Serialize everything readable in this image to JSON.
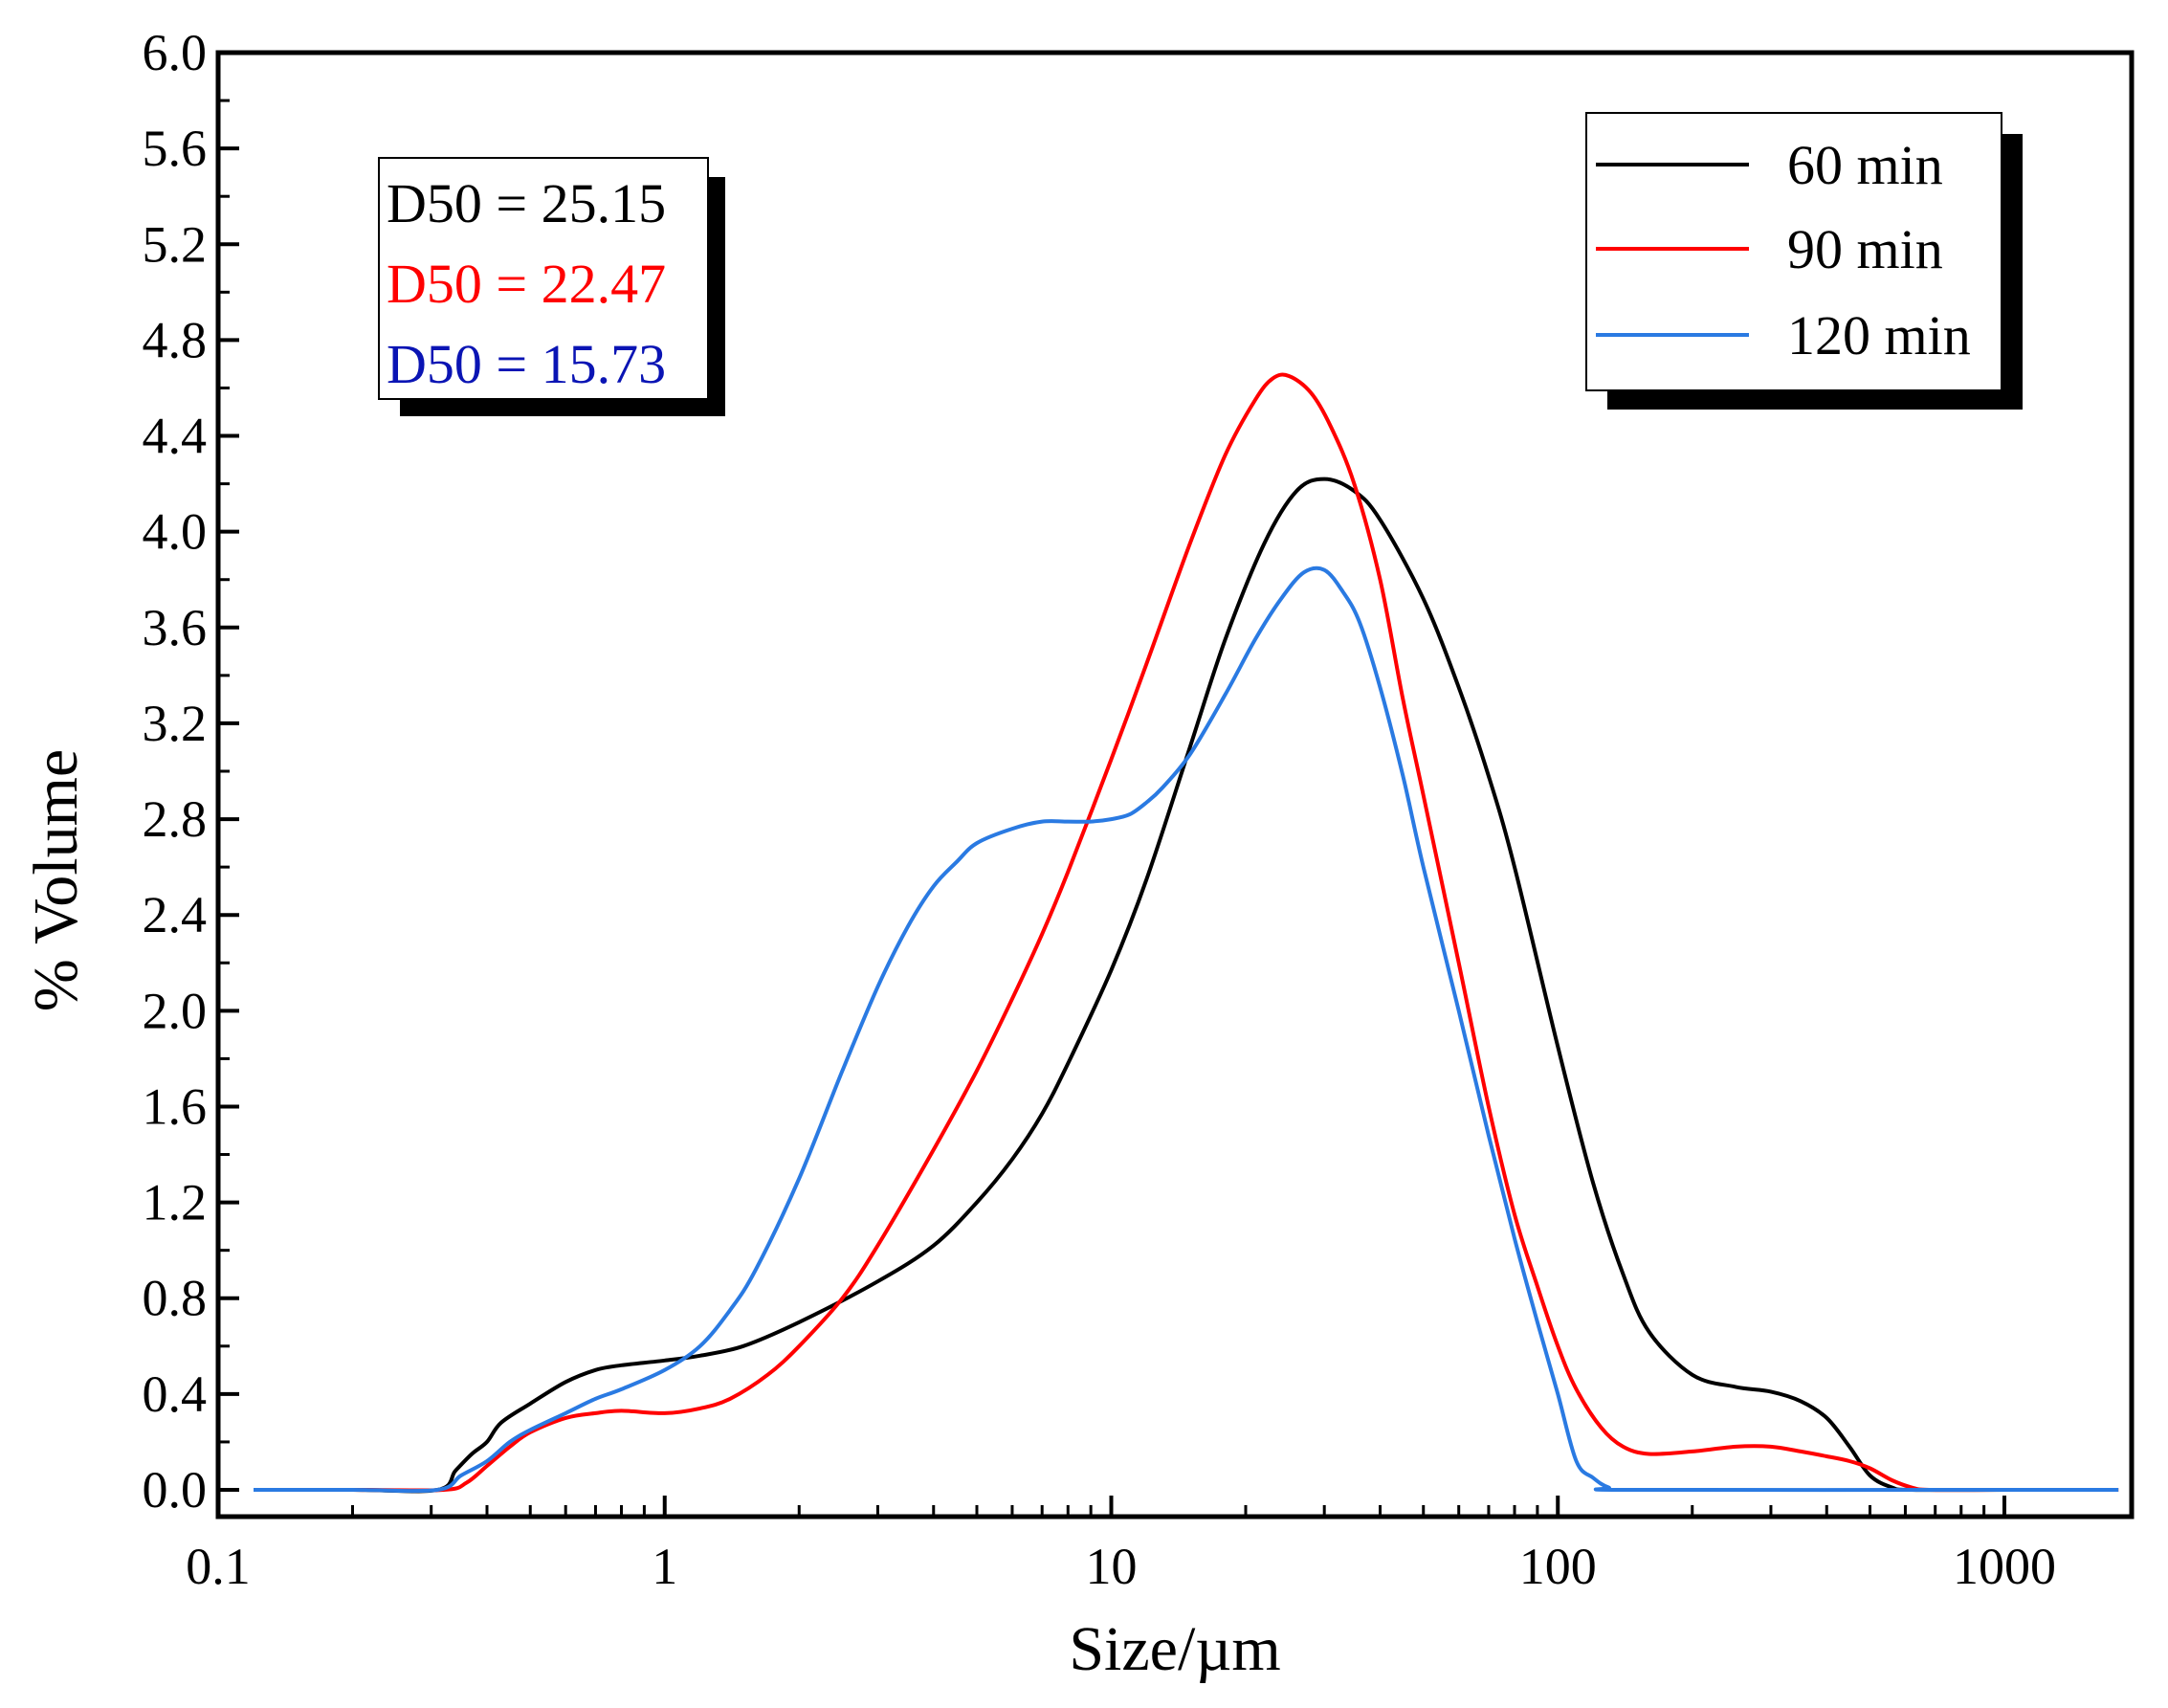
{
  "chart_data": {
    "type": "line",
    "xscale": "log",
    "xlabel": "Size/µm",
    "ylabel": "% Volume",
    "xlim": [
      0.1,
      2000
    ],
    "ylim": [
      0,
      6.0
    ],
    "xticks": [
      0.1,
      1,
      10,
      100,
      1000
    ],
    "xtick_labels": [
      "0.1",
      "1",
      "10",
      "100",
      "1000"
    ],
    "yticks": [
      0,
      0.4,
      0.8,
      1.2,
      1.6,
      2.0,
      2.4,
      2.8,
      3.2,
      3.6,
      4.0,
      4.4,
      4.8,
      5.2,
      5.6,
      6.0
    ],
    "ytick_labels": [
      "0.0",
      "0.4",
      "0.8",
      "1.2",
      "1.6",
      "2.0",
      "2.4",
      "2.8",
      "3.2",
      "3.6",
      "4.0",
      "4.4",
      "4.8",
      "5.2",
      "5.6",
      "6.0"
    ],
    "grid": false,
    "legend_position": "top-right",
    "annotation": {
      "position": "top-left",
      "lines": [
        {
          "text": "D50 = 25.15",
          "color": "#000000"
        },
        {
          "text": "D50 = 22.47",
          "color": "#ff0000"
        },
        {
          "text": "D50 = 15.73",
          "color": "#0a14b4"
        }
      ]
    },
    "series": [
      {
        "name": "60 min",
        "color": "#000000",
        "points": [
          [
            0.12,
            0
          ],
          [
            0.2,
            0
          ],
          [
            0.31,
            0
          ],
          [
            0.34,
            0.08
          ],
          [
            0.37,
            0.15
          ],
          [
            0.4,
            0.2
          ],
          [
            0.43,
            0.28
          ],
          [
            0.5,
            0.36
          ],
          [
            0.6,
            0.45
          ],
          [
            0.7,
            0.5
          ],
          [
            0.8,
            0.52
          ],
          [
            1.0,
            0.54
          ],
          [
            1.2,
            0.56
          ],
          [
            1.5,
            0.6
          ],
          [
            2.0,
            0.7
          ],
          [
            3.0,
            0.87
          ],
          [
            4.0,
            1.02
          ],
          [
            5.0,
            1.2
          ],
          [
            6.0,
            1.38
          ],
          [
            7.0,
            1.57
          ],
          [
            8.0,
            1.78
          ],
          [
            10.0,
            2.17
          ],
          [
            12.0,
            2.55
          ],
          [
            15.0,
            3.1
          ],
          [
            18.0,
            3.55
          ],
          [
            22.0,
            3.95
          ],
          [
            26.0,
            4.17
          ],
          [
            30.0,
            4.22
          ],
          [
            35.0,
            4.17
          ],
          [
            40.0,
            4.05
          ],
          [
            50.0,
            3.72
          ],
          [
            60.0,
            3.35
          ],
          [
            70.0,
            2.98
          ],
          [
            80.0,
            2.6
          ],
          [
            100.0,
            1.85
          ],
          [
            120.0,
            1.28
          ],
          [
            140.0,
            0.9
          ],
          [
            160.0,
            0.66
          ],
          [
            200.0,
            0.48
          ],
          [
            250.0,
            0.43
          ],
          [
            300.0,
            0.41
          ],
          [
            350.0,
            0.37
          ],
          [
            400.0,
            0.3
          ],
          [
            450.0,
            0.18
          ],
          [
            500.0,
            0.06
          ],
          [
            560.0,
            0.01
          ],
          [
            620.0,
            0
          ],
          [
            1000.0,
            0
          ],
          [
            1800.0,
            0
          ]
        ]
      },
      {
        "name": "90 min",
        "color": "#ff0000",
        "points": [
          [
            0.12,
            0
          ],
          [
            0.2,
            0
          ],
          [
            0.32,
            0
          ],
          [
            0.36,
            0.03
          ],
          [
            0.4,
            0.1
          ],
          [
            0.45,
            0.18
          ],
          [
            0.5,
            0.24
          ],
          [
            0.6,
            0.3
          ],
          [
            0.7,
            0.32
          ],
          [
            0.8,
            0.33
          ],
          [
            1.0,
            0.32
          ],
          [
            1.2,
            0.34
          ],
          [
            1.4,
            0.38
          ],
          [
            1.7,
            0.48
          ],
          [
            2.0,
            0.6
          ],
          [
            2.5,
            0.8
          ],
          [
            3.0,
            1.02
          ],
          [
            4.0,
            1.42
          ],
          [
            5.0,
            1.75
          ],
          [
            6.0,
            2.05
          ],
          [
            7.0,
            2.32
          ],
          [
            8.0,
            2.58
          ],
          [
            10.0,
            3.05
          ],
          [
            12.0,
            3.45
          ],
          [
            15.0,
            3.95
          ],
          [
            18.0,
            4.32
          ],
          [
            21.0,
            4.55
          ],
          [
            23.0,
            4.64
          ],
          [
            25.0,
            4.65
          ],
          [
            28.0,
            4.58
          ],
          [
            31.0,
            4.44
          ],
          [
            35.0,
            4.2
          ],
          [
            40.0,
            3.8
          ],
          [
            45.0,
            3.3
          ],
          [
            50.0,
            2.9
          ],
          [
            60.0,
            2.2
          ],
          [
            70.0,
            1.6
          ],
          [
            80.0,
            1.15
          ],
          [
            90.0,
            0.85
          ],
          [
            100.0,
            0.6
          ],
          [
            110.0,
            0.42
          ],
          [
            125.0,
            0.26
          ],
          [
            140.0,
            0.18
          ],
          [
            160.0,
            0.15
          ],
          [
            200.0,
            0.16
          ],
          [
            250.0,
            0.18
          ],
          [
            300.0,
            0.18
          ],
          [
            350.0,
            0.16
          ],
          [
            400.0,
            0.14
          ],
          [
            450.0,
            0.12
          ],
          [
            500.0,
            0.09
          ],
          [
            560.0,
            0.04
          ],
          [
            620.0,
            0.01
          ],
          [
            680.0,
            0
          ],
          [
            1000.0,
            0
          ],
          [
            1800.0,
            0
          ]
        ]
      },
      {
        "name": "120 min",
        "color": "#2a7ae2",
        "points": [
          [
            0.12,
            0
          ],
          [
            0.2,
            0
          ],
          [
            0.31,
            0
          ],
          [
            0.35,
            0.06
          ],
          [
            0.4,
            0.12
          ],
          [
            0.45,
            0.2
          ],
          [
            0.5,
            0.25
          ],
          [
            0.6,
            0.32
          ],
          [
            0.7,
            0.38
          ],
          [
            0.8,
            0.42
          ],
          [
            1.0,
            0.5
          ],
          [
            1.2,
            0.6
          ],
          [
            1.4,
            0.75
          ],
          [
            1.6,
            0.92
          ],
          [
            2.0,
            1.3
          ],
          [
            2.5,
            1.75
          ],
          [
            3.0,
            2.1
          ],
          [
            3.5,
            2.35
          ],
          [
            4.0,
            2.52
          ],
          [
            4.5,
            2.62
          ],
          [
            5.0,
            2.7
          ],
          [
            6.0,
            2.76
          ],
          [
            7.0,
            2.79
          ],
          [
            8.0,
            2.79
          ],
          [
            9.0,
            2.79
          ],
          [
            10.0,
            2.8
          ],
          [
            11.0,
            2.82
          ],
          [
            12.0,
            2.87
          ],
          [
            13.0,
            2.93
          ],
          [
            15.0,
            3.07
          ],
          [
            18.0,
            3.32
          ],
          [
            21.0,
            3.55
          ],
          [
            24.0,
            3.72
          ],
          [
            27.0,
            3.83
          ],
          [
            30.0,
            3.84
          ],
          [
            33.0,
            3.75
          ],
          [
            36.0,
            3.62
          ],
          [
            40.0,
            3.35
          ],
          [
            45.0,
            2.98
          ],
          [
            50.0,
            2.6
          ],
          [
            60.0,
            2.0
          ],
          [
            70.0,
            1.48
          ],
          [
            80.0,
            1.05
          ],
          [
            90.0,
            0.7
          ],
          [
            100.0,
            0.4
          ],
          [
            110.0,
            0.12
          ],
          [
            120.0,
            0.05
          ],
          [
            130.0,
            0.01
          ],
          [
            145.0,
            0
          ],
          [
            1000.0,
            0
          ],
          [
            1800.0,
            0
          ]
        ]
      }
    ]
  }
}
